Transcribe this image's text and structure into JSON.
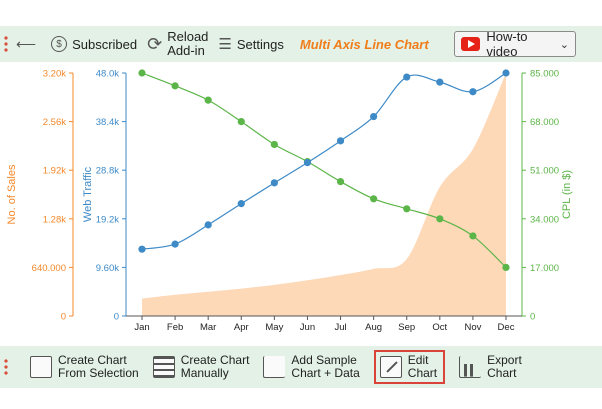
{
  "toolbar_top": {
    "subscribed": "Subscribed",
    "reload_line1": "Reload",
    "reload_line2": "Add-in",
    "settings": "Settings",
    "brand": "Multi Axis Line Chart",
    "howto": "How-to video"
  },
  "toolbar_bottom": {
    "create_sel_1": "Create Chart",
    "create_sel_2": "From Selection",
    "create_man_1": "Create Chart",
    "create_man_2": "Manually",
    "add_sample_1": "Add Sample",
    "add_sample_2": "Chart + Data",
    "edit_1": "Edit",
    "edit_2": "Chart",
    "export_1": "Export",
    "export_2": "Chart"
  },
  "colors": {
    "sales": "#f5882a",
    "sales_fill": "#fdd9b8",
    "traffic": "#3d8ac7",
    "cpl": "#5cb548",
    "toolbar": "#e3f1e6"
  },
  "chart_data": {
    "type": "line",
    "categories": [
      "Jan",
      "Feb",
      "Mar",
      "Apr",
      "May",
      "Jun",
      "Jul",
      "Aug",
      "Sep",
      "Oct",
      "Nov",
      "Dec"
    ],
    "series": [
      {
        "name": "No. of Sales",
        "axis": "left-outer",
        "style": "area",
        "values": [
          230,
          280,
          320,
          360,
          410,
          470,
          540,
          620,
          750,
          1700,
          2200,
          3200
        ]
      },
      {
        "name": "Web Traffic",
        "axis": "left-inner",
        "style": "line",
        "values": [
          13200,
          14200,
          18000,
          22200,
          26300,
          30300,
          34600,
          39400,
          47200,
          46200,
          44300,
          48000
        ]
      },
      {
        "name": "CPL (in $)",
        "axis": "right",
        "style": "line",
        "values": [
          85000,
          80500,
          75500,
          68000,
          60000,
          54000,
          47000,
          41000,
          37500,
          34000,
          28000,
          17000
        ]
      }
    ],
    "axes": {
      "sales": {
        "label": "No. of Sales",
        "range": [
          0,
          3200
        ],
        "ticks": [
          "0",
          "640.000",
          "1.28k",
          "1.92k",
          "2.56k",
          "3.20k"
        ]
      },
      "traffic": {
        "label": "Web Traffic",
        "range": [
          0,
          48000
        ],
        "ticks": [
          "0",
          "9.60k",
          "19.2k",
          "28.8k",
          "38.4k",
          "48.0k"
        ]
      },
      "cpl": {
        "label": "CPL (in $)",
        "range": [
          0,
          85000
        ],
        "ticks": [
          "0",
          "17.000",
          "34.000",
          "51.000",
          "68.000",
          "85.000"
        ]
      }
    }
  }
}
